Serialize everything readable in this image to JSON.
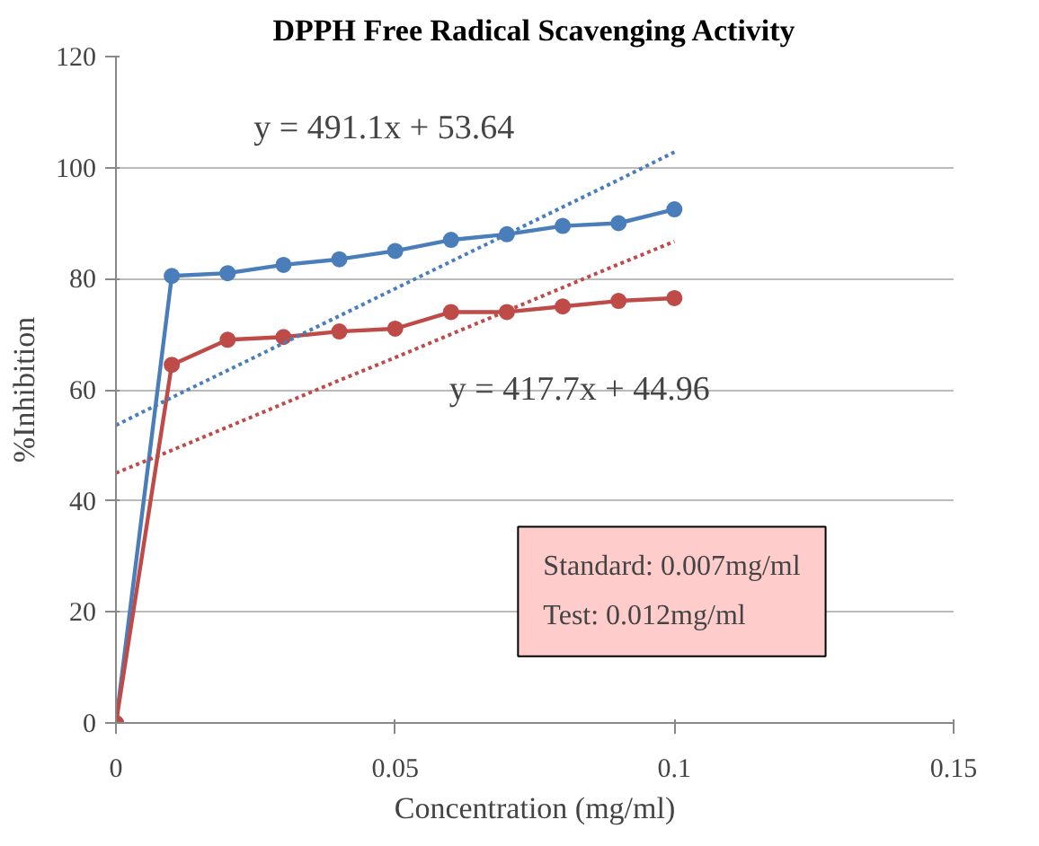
{
  "chart_data": {
    "type": "line",
    "title": "DPPH Free Radical Scavenging Activity",
    "xlabel": "Concentration (mg/ml)",
    "ylabel": "%Inhibition",
    "x": [
      0,
      0.01,
      0.02,
      0.03,
      0.04,
      0.05,
      0.06,
      0.07,
      0.08,
      0.09,
      0.1
    ],
    "series": [
      {
        "color": "#4a7ebb",
        "marker": "circle",
        "values": [
          0,
          80.5,
          81,
          82.5,
          83.5,
          85,
          87,
          88,
          89.5,
          90,
          92.5
        ]
      },
      {
        "color": "#be4b48",
        "marker": "circle",
        "values": [
          0,
          64.5,
          69,
          69.5,
          70.5,
          71,
          74,
          74,
          75,
          76,
          76.5
        ]
      },
      {
        "type": "line",
        "color": "#4a7ebb",
        "line_style": "dotted",
        "marker": "none",
        "values": [
          53.6,
          58.6,
          63.5,
          68.4,
          73.3,
          78.2,
          83.1,
          88.0,
          92.9,
          97.8,
          102.8
        ]
      },
      {
        "type": "line",
        "color": "#be4b48",
        "line_style": "dotted",
        "marker": "none",
        "values": [
          45.0,
          49.1,
          53.3,
          57.5,
          61.7,
          65.8,
          70.0,
          74.2,
          78.4,
          82.6,
          86.7
        ]
      }
    ],
    "xlim": [
      0,
      0.15
    ],
    "xticks": [
      0,
      0.05,
      0.1,
      0.15
    ],
    "ylim": [
      0,
      120
    ],
    "yticks": [
      0,
      20,
      40,
      60,
      80,
      100,
      120
    ],
    "grid": "y",
    "annotations": [
      "y = 491.1x + 53.64",
      "y = 417.7x + 44.96",
      "Standard: 0.007mg/ml\nTest: 0.012mg/ml"
    ]
  }
}
